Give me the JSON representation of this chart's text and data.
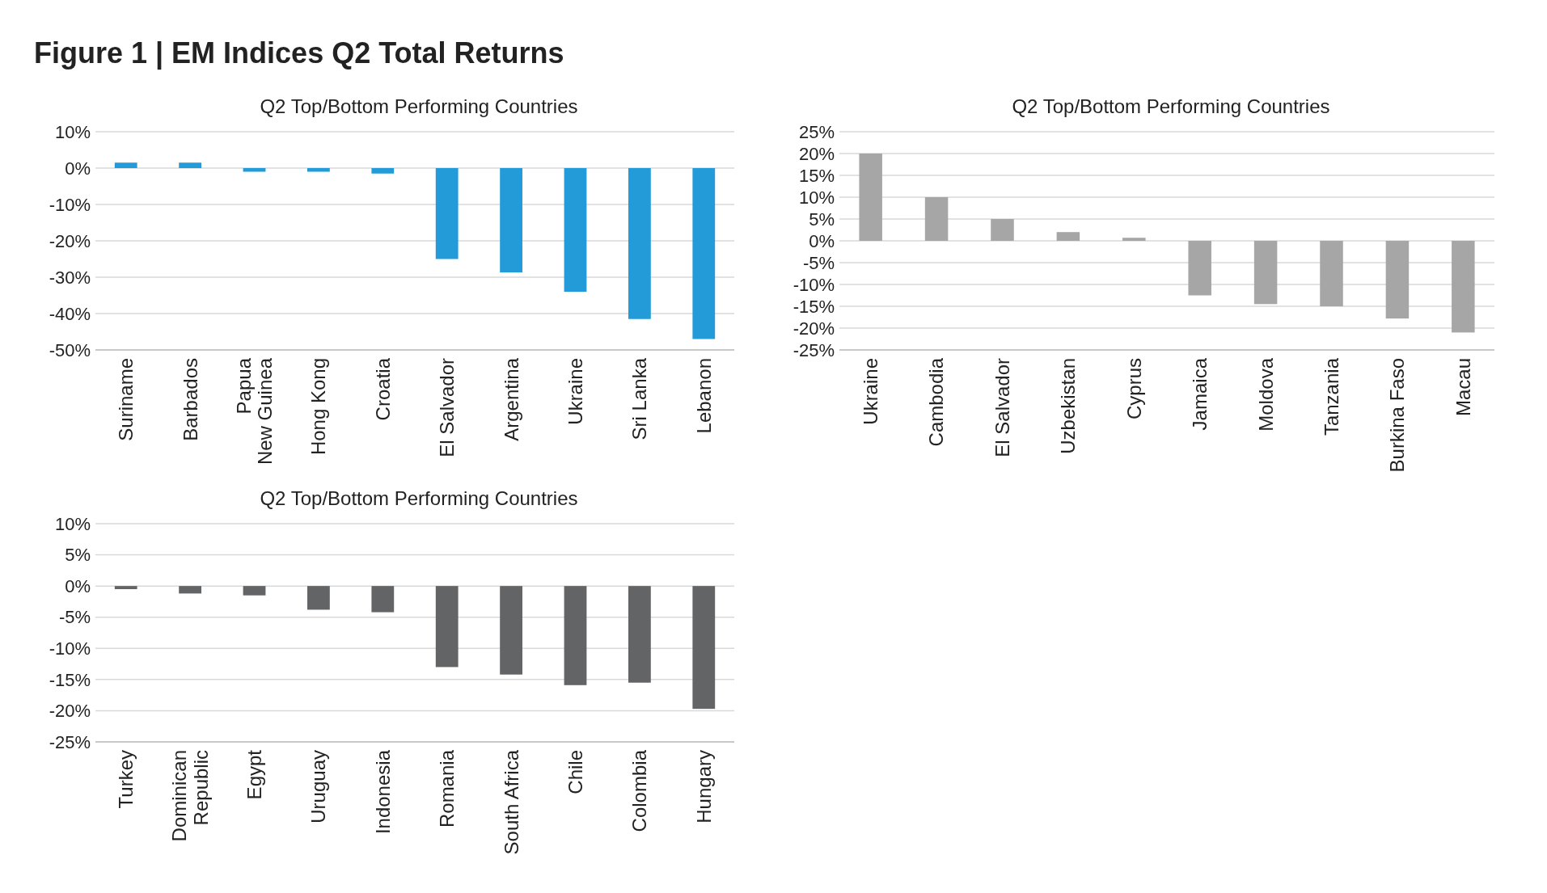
{
  "chart_data": [
    {
      "type": "bar",
      "title": "Figure 1 | EM Indices Q2 Total Returns",
      "subtitle": "Q2 Top/Bottom Performing Countries",
      "categories": [
        "Suriname",
        "Barbados",
        "Papua\nNew Guinea",
        "Hong Kong",
        "Croatia",
        "El Salvador",
        "Argentina",
        "Ukraine",
        "Sri Lanka",
        "Lebanon"
      ],
      "values": [
        1.5,
        1.5,
        -1,
        -1,
        -1.5,
        -25,
        -28.7,
        -34,
        -41.5,
        -47
      ],
      "color": "#229bd8",
      "ylim": [
        -50,
        10
      ],
      "yticks": [
        {
          "value": -50,
          "label": "-50%"
        },
        {
          "value": -40,
          "label": "-40%"
        },
        {
          "value": -30,
          "label": "-30%"
        },
        {
          "value": -20,
          "label": "-20%"
        },
        {
          "value": -10,
          "label": "-10%"
        },
        {
          "value": 0,
          "label": "0%"
        },
        {
          "value": 10,
          "label": "10%"
        }
      ],
      "grid": "y"
    },
    {
      "type": "bar",
      "title": "Q2 Top/Bottom Performing Countries",
      "categories": [
        "Ukraine",
        "Cambodia",
        "El Salvador",
        "Uzbekistan",
        "Cyprus",
        "Jamaica",
        "Moldova",
        "Tanzania",
        "Burkina Faso",
        "Macau"
      ],
      "values": [
        20,
        10,
        5,
        2,
        0.7,
        -12.5,
        -14.5,
        -15,
        -17.8,
        -21
      ],
      "color": "#a6a6a6",
      "ylim": [
        -25,
        25
      ],
      "yticks": [
        {
          "value": -25,
          "label": "-25%"
        },
        {
          "value": -20,
          "label": "-20%"
        },
        {
          "value": -15,
          "label": "-15%"
        },
        {
          "value": -10,
          "label": "-10%"
        },
        {
          "value": -5,
          "label": "-5%"
        },
        {
          "value": 0,
          "label": "0%"
        },
        {
          "value": 5,
          "label": "5%"
        },
        {
          "value": 10,
          "label": "10%"
        },
        {
          "value": 15,
          "label": "15%"
        },
        {
          "value": 20,
          "label": "20%"
        },
        {
          "value": 25,
          "label": "25%"
        }
      ],
      "grid": "y"
    },
    {
      "type": "bar",
      "title": "Q2 Top/Bottom Performing Countries",
      "categories": [
        "Turkey",
        "Dominican\nRepublic",
        "Egypt",
        "Uruguay",
        "Indonesia",
        "Romania",
        "South Africa",
        "Chile",
        "Colombia",
        "Hungary"
      ],
      "values": [
        -0.5,
        -1.2,
        -1.5,
        -3.8,
        -4.2,
        -13,
        -14.2,
        -15.9,
        -15.5,
        -19.7
      ],
      "color": "#636466",
      "ylim": [
        -25,
        10
      ],
      "yticks": [
        {
          "value": -25,
          "label": "-25%"
        },
        {
          "value": -20,
          "label": "-20%"
        },
        {
          "value": -15,
          "label": "-15%"
        },
        {
          "value": -10,
          "label": "-10%"
        },
        {
          "value": -5,
          "label": "-5%"
        },
        {
          "value": 0,
          "label": "0%"
        },
        {
          "value": 5,
          "label": "5%"
        },
        {
          "value": 10,
          "label": "10%"
        }
      ],
      "grid": "y"
    }
  ]
}
